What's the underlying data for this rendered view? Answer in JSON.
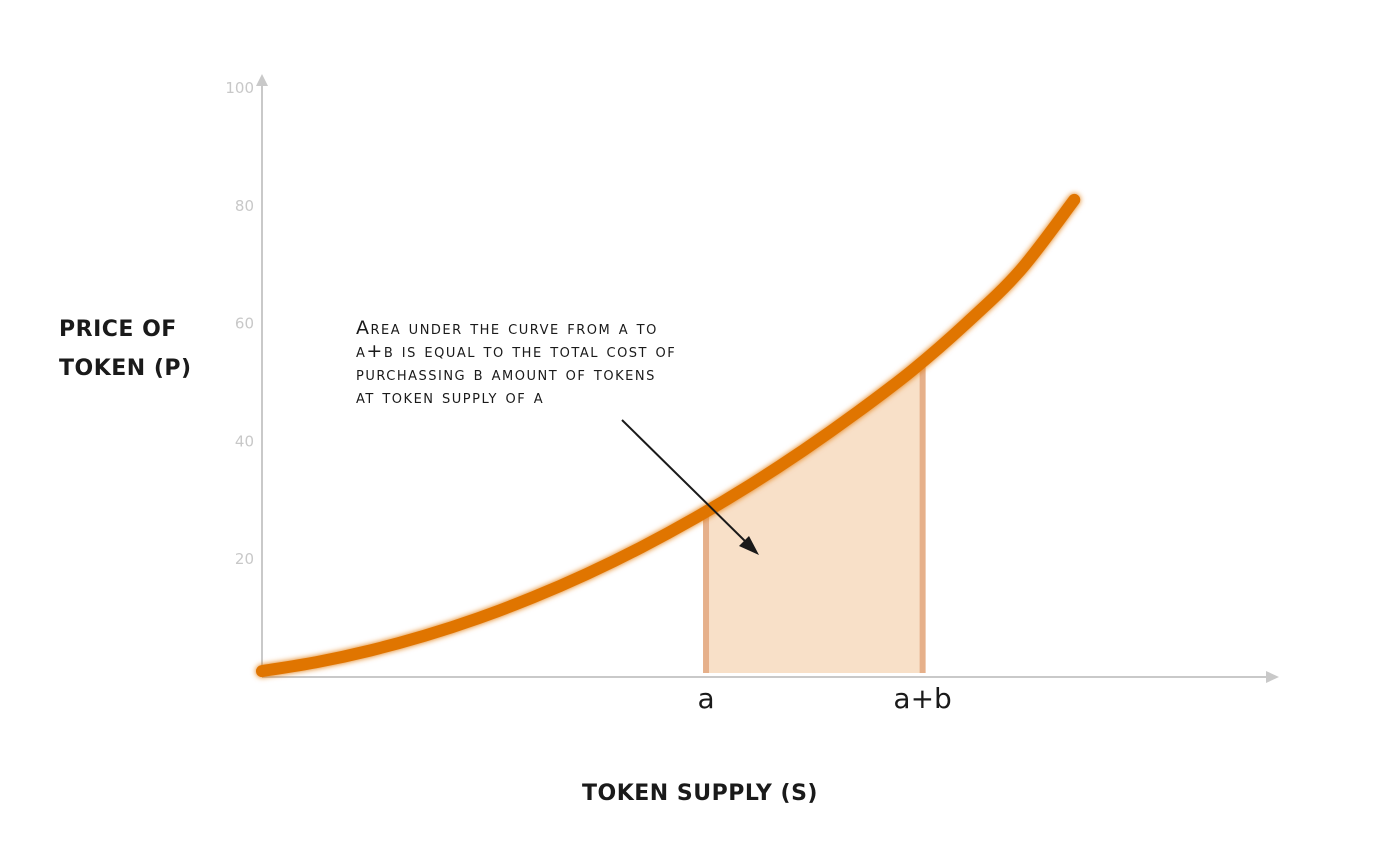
{
  "chart_data": {
    "type": "line",
    "title": "",
    "xlabel": "TOKEN SUPPLY (S)",
    "ylabel": [
      "PRICE OF",
      "TOKEN (P)"
    ],
    "ylim": [
      0,
      100
    ],
    "yticks": [
      20,
      40,
      60,
      80,
      100
    ],
    "xtick_labels": [
      "a",
      "a+b"
    ],
    "x_is_abstract": true,
    "xlim": [
      0,
      1
    ],
    "series": [
      {
        "color": "#e07400",
        "x": [
          0.0,
          0.05,
          0.1,
          0.15,
          0.2,
          0.25,
          0.3,
          0.35,
          0.4,
          0.45,
          0.5,
          0.55,
          0.6,
          0.65,
          0.7,
          0.75
        ],
        "y": [
          1,
          2.5,
          4.5,
          7,
          10,
          13.5,
          17.5,
          22,
          27,
          32.5,
          38.5,
          45,
          52,
          60,
          69,
          81
        ]
      }
    ],
    "shaded_region": {
      "x_start": 0.41,
      "x_end": 0.61,
      "fill": "#f8e0c8",
      "edge": "#e6b08a"
    },
    "annotation": {
      "lines": [
        "Area under the curve from a to",
        "a+b is equal to the total cost of",
        "purchassing b amount of tokens",
        "at token supply of a"
      ]
    },
    "grid": false,
    "legend": "none"
  }
}
